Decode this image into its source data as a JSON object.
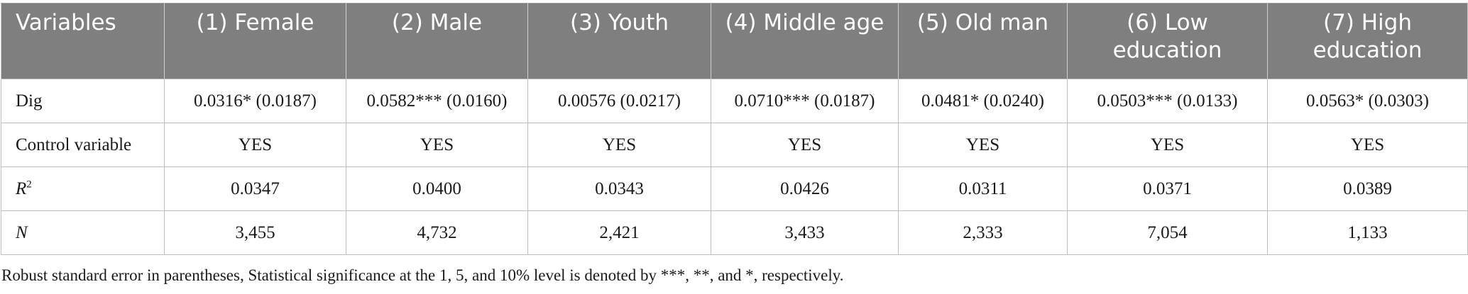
{
  "table": {
    "columns": [
      "Variables",
      "(1) Female",
      "(2) Male",
      "(3) Youth",
      "(4) Middle age",
      "(5) Old man",
      "(6) Low education",
      "(7) High education"
    ],
    "rows": [
      {
        "label": "Dig",
        "cells": [
          "0.0316* (0.0187)",
          "0.0582*** (0.0160)",
          "0.00576 (0.0217)",
          "0.0710*** (0.0187)",
          "0.0481* (0.0240)",
          "0.0503*** (0.0133)",
          "0.0563* (0.0303)"
        ]
      },
      {
        "label": "Control variable",
        "cells": [
          "YES",
          "YES",
          "YES",
          "YES",
          "YES",
          "YES",
          "YES"
        ]
      },
      {
        "label": "R",
        "label_sup": "2",
        "cells": [
          "0.0347",
          "0.0400",
          "0.0343",
          "0.0426",
          "0.0311",
          "0.0371",
          "0.0389"
        ]
      },
      {
        "label": "N",
        "cells": [
          "3,455",
          "4,732",
          "2,421",
          "3,433",
          "2,333",
          "7,054",
          "1,133"
        ]
      }
    ]
  },
  "note": "Robust standard error in parentheses, Statistical significance at the 1, 5, and 10% level is denoted by ***, **, and *, respectively."
}
